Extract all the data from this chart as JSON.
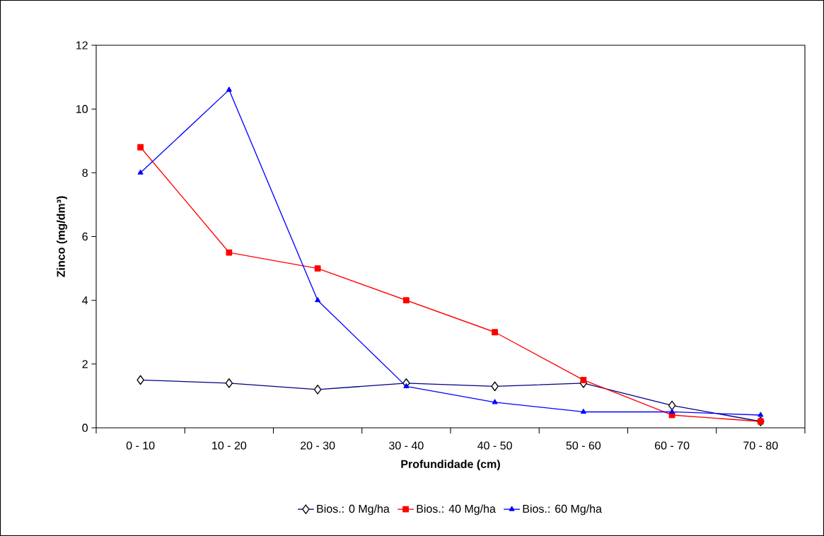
{
  "chart_data": {
    "type": "line",
    "xlabel": "Profundidade (cm)",
    "ylabel": "Zinco (mg/dm³)",
    "categories": [
      "0 - 10",
      "10 - 20",
      "20 - 30",
      "30 - 40",
      "40 - 50",
      "50 - 60",
      "60 - 70",
      "70 - 80"
    ],
    "series": [
      {
        "name": "Bios.: 0 Mg/ha",
        "color": "#000080",
        "marker": "diamond",
        "values": [
          1.5,
          1.4,
          1.2,
          1.4,
          1.3,
          1.4,
          0.7,
          0.2
        ]
      },
      {
        "name": "Bios.: 40 Mg/ha",
        "color": "#ff0000",
        "marker": "square",
        "values": [
          8.8,
          5.5,
          5.0,
          4.0,
          3.0,
          1.5,
          0.4,
          0.2
        ]
      },
      {
        "name": "Bios.: 60 Mg/ha",
        "color": "#0000ff",
        "marker": "triangle",
        "values": [
          8.0,
          10.6,
          4.0,
          1.3,
          0.8,
          0.5,
          0.5,
          0.4
        ]
      }
    ],
    "ylim": [
      0,
      12
    ],
    "yticks": [
      0,
      2,
      4,
      6,
      8,
      10,
      12
    ],
    "grid": false,
    "legend": "bottom",
    "line_style": "solid"
  }
}
